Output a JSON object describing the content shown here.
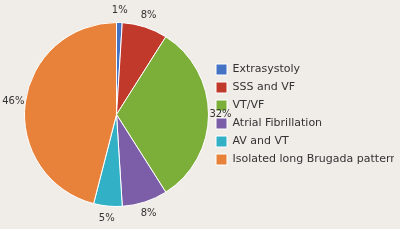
{
  "chart_data": {
    "type": "pie",
    "categories": [
      "Extrasystoly",
      "SSS and VF",
      "VT/VF",
      "Atrial Fibrillation",
      "AV and VT",
      "Isolated long Brugada pattern"
    ],
    "values": [
      1,
      8,
      32,
      8,
      5,
      46
    ],
    "value_labels": [
      "1%",
      "8%",
      "32%",
      "8%",
      "5%",
      "46%"
    ],
    "colors": [
      "#4472C4",
      "#C0392B",
      "#7CAF3A",
      "#7B5EA7",
      "#31B0C6",
      "#E8823A"
    ],
    "legend": "right",
    "data_labels": true
  }
}
